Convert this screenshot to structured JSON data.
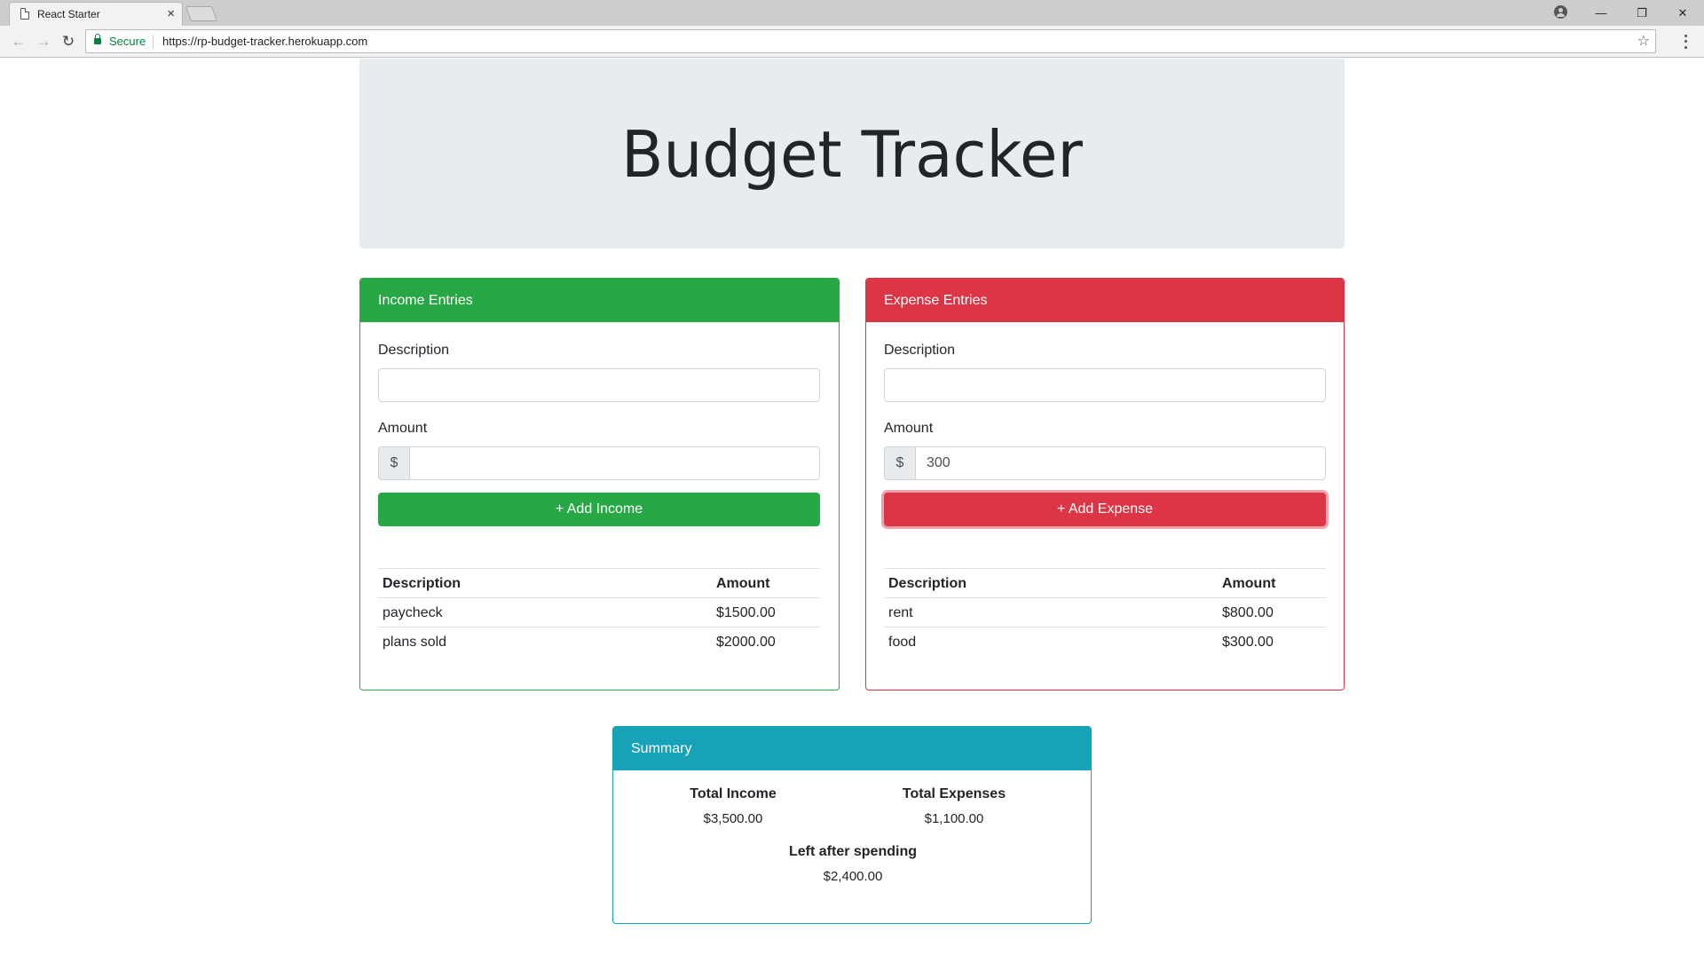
{
  "browser": {
    "tab_title": "React Starter",
    "tab_close": "×",
    "secure_label": "Secure",
    "url": "https://rp-budget-tracker.herokuapp.com",
    "back": "←",
    "forward": "→",
    "reload": "↻",
    "star": "☆",
    "win_min": "—",
    "win_restore": "❐",
    "win_close": "✕"
  },
  "header": {
    "title": "Budget Tracker"
  },
  "income": {
    "header": "Income Entries",
    "description_label": "Description",
    "description_value": "",
    "amount_label": "Amount",
    "currency_symbol": "$",
    "amount_value": "",
    "add_button": "+ Add Income",
    "table": {
      "columns": [
        "Description",
        "Amount"
      ],
      "rows": [
        {
          "description": "paycheck",
          "amount": "$1500.00"
        },
        {
          "description": "plans sold",
          "amount": "$2000.00"
        }
      ]
    }
  },
  "expense": {
    "header": "Expense Entries",
    "description_label": "Description",
    "description_value": "",
    "amount_label": "Amount",
    "currency_symbol": "$",
    "amount_value": "300",
    "add_button": "+ Add Expense",
    "table": {
      "columns": [
        "Description",
        "Amount"
      ],
      "rows": [
        {
          "description": "rent",
          "amount": "$800.00"
        },
        {
          "description": "food",
          "amount": "$300.00"
        }
      ]
    }
  },
  "summary": {
    "header": "Summary",
    "total_income_label": "Total Income",
    "total_income_value": "$3,500.00",
    "total_expenses_label": "Total Expenses",
    "total_expenses_value": "$1,100.00",
    "left_label": "Left after spending",
    "left_value": "$2,400.00"
  },
  "colors": {
    "success": "#28a745",
    "danger": "#dc3545",
    "info": "#17a2b8",
    "jumbotron": "#e9ecef"
  }
}
